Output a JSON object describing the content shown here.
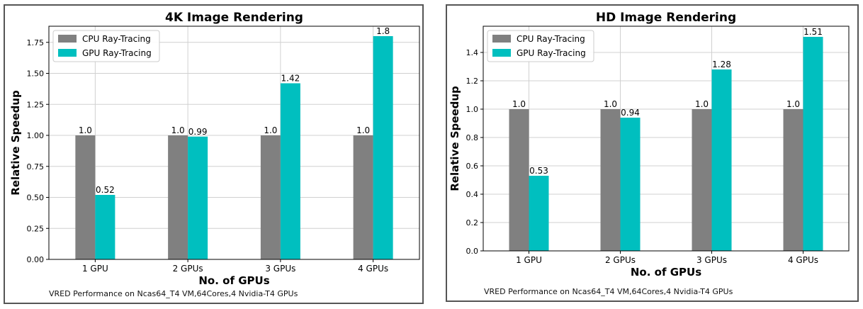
{
  "chart_data": [
    {
      "type": "bar",
      "title": "4K Image Rendering",
      "xlabel": "No. of GPUs",
      "ylabel": "Relative Speedup",
      "categories": [
        "1 GPU",
        "2 GPUs",
        "3 GPUs",
        "4 GPUs"
      ],
      "series": [
        {
          "name": "CPU Ray-Tracing",
          "values": [
            1.0,
            1.0,
            1.0,
            1.0
          ],
          "labels": [
            "1.0",
            "1.0",
            "1.0",
            "1.0"
          ],
          "color": "#808080"
        },
        {
          "name": "GPU Ray-Tracing",
          "values": [
            0.52,
            0.99,
            1.42,
            1.8
          ],
          "labels": [
            "0.52",
            "0.99",
            "1.42",
            "1.8"
          ],
          "color": "#00BFBF"
        }
      ],
      "ylim": [
        0,
        1.88
      ],
      "yticks": [
        0.0,
        0.25,
        0.5,
        0.75,
        1.0,
        1.25,
        1.5,
        1.75
      ],
      "ytick_labels": [
        "0.00",
        "0.25",
        "0.50",
        "0.75",
        "1.00",
        "1.25",
        "1.50",
        "1.75"
      ],
      "grid": true,
      "legend_position": "top-left",
      "caption": "VRED Performance on Ncas64_T4 VM,64Cores,4 Nvidia-T4 GPUs"
    },
    {
      "type": "bar",
      "title": "HD Image Rendering",
      "xlabel": "No. of GPUs",
      "ylabel": "Relative Speedup",
      "categories": [
        "1 GPU",
        "2 GPUs",
        "3 GPUs",
        "4 GPUs"
      ],
      "series": [
        {
          "name": "CPU Ray-Tracing",
          "values": [
            1.0,
            1.0,
            1.0,
            1.0
          ],
          "labels": [
            "1.0",
            "1.0",
            "1.0",
            "1.0"
          ],
          "color": "#808080"
        },
        {
          "name": "GPU Ray-Tracing",
          "values": [
            0.53,
            0.94,
            1.28,
            1.51
          ],
          "labels": [
            "0.53",
            "0.94",
            "1.28",
            "1.51"
          ],
          "color": "#00BFBF"
        }
      ],
      "ylim": [
        0,
        1.585
      ],
      "yticks": [
        0.0,
        0.2,
        0.4,
        0.6,
        0.8,
        1.0,
        1.2,
        1.4
      ],
      "ytick_labels": [
        "0.0",
        "0.2",
        "0.4",
        "0.6",
        "0.8",
        "1.0",
        "1.2",
        "1.4"
      ],
      "grid": true,
      "legend_position": "top-left",
      "caption": "VRED Performance on Ncas64_T4 VM,64Cores,4 Nvidia-T4 GPUs"
    }
  ]
}
